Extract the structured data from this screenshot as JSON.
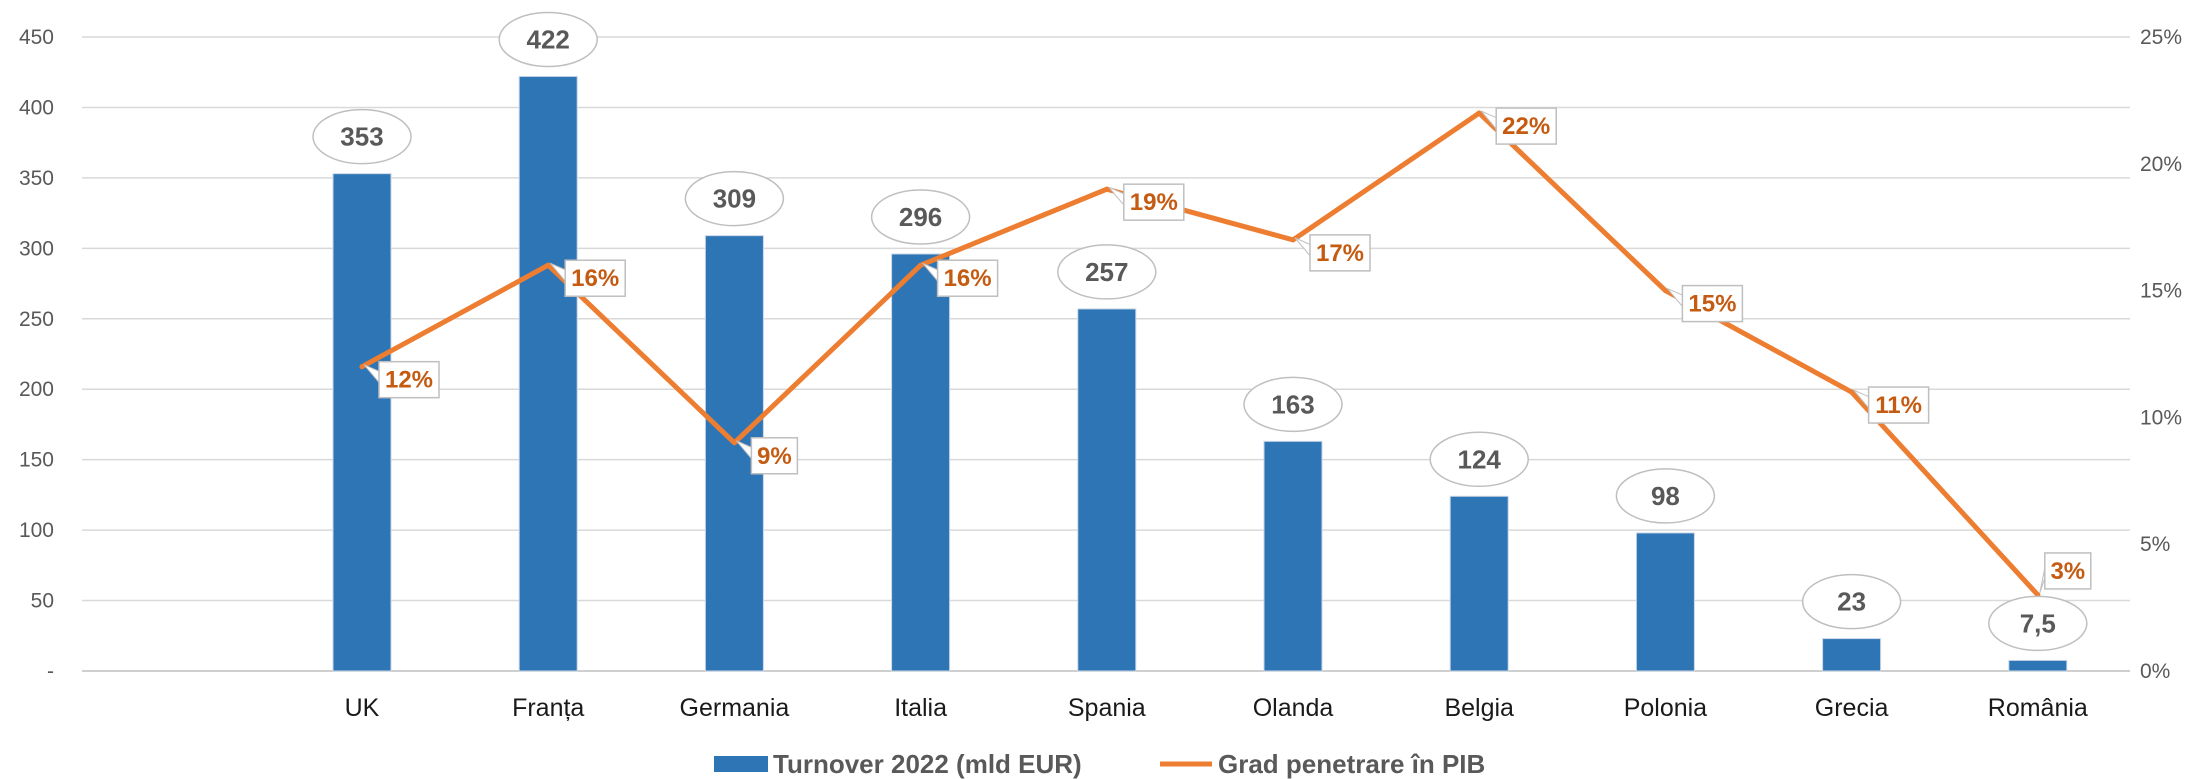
{
  "chart_data": {
    "type": "bar",
    "categories": [
      "UK",
      "Franța",
      "Germania",
      "Italia",
      "Spania",
      "Olanda",
      "Belgia",
      "Polonia",
      "Grecia",
      "România"
    ],
    "series": [
      {
        "name": "Turnover 2022 (mld EUR)",
        "type": "bar",
        "axis": "left",
        "values": [
          353,
          422,
          309,
          296,
          257,
          163,
          124,
          98,
          23,
          7.5
        ],
        "labels": [
          "353",
          "422",
          "309",
          "296",
          "257",
          "163",
          "124",
          "98",
          "23",
          "7,5"
        ],
        "color": "#2e75b6"
      },
      {
        "name": "Grad penetrare în PIB",
        "type": "line",
        "axis": "right",
        "values": [
          12,
          16,
          9,
          16,
          19,
          17,
          22,
          15,
          11,
          3
        ],
        "labels": [
          "12%",
          "16%",
          "9%",
          "16%",
          "19%",
          "17%",
          "22%",
          "15%",
          "11%",
          "3%"
        ],
        "color": "#ed7d31"
      }
    ],
    "y_left": {
      "ylim": [
        0,
        450
      ],
      "ticks": [
        0,
        50,
        100,
        150,
        200,
        250,
        300,
        350,
        400,
        450
      ],
      "tick_labels": [
        "-",
        "50",
        "100",
        "150",
        "200",
        "250",
        "300",
        "350",
        "400",
        "450"
      ]
    },
    "y_right": {
      "ylim": [
        0,
        25
      ],
      "ticks": [
        0,
        5,
        10,
        15,
        20,
        25
      ],
      "tick_labels": [
        "0%",
        "5%",
        "10%",
        "15%",
        "20%",
        "25%"
      ]
    },
    "grid": true,
    "legend_position": "bottom"
  }
}
